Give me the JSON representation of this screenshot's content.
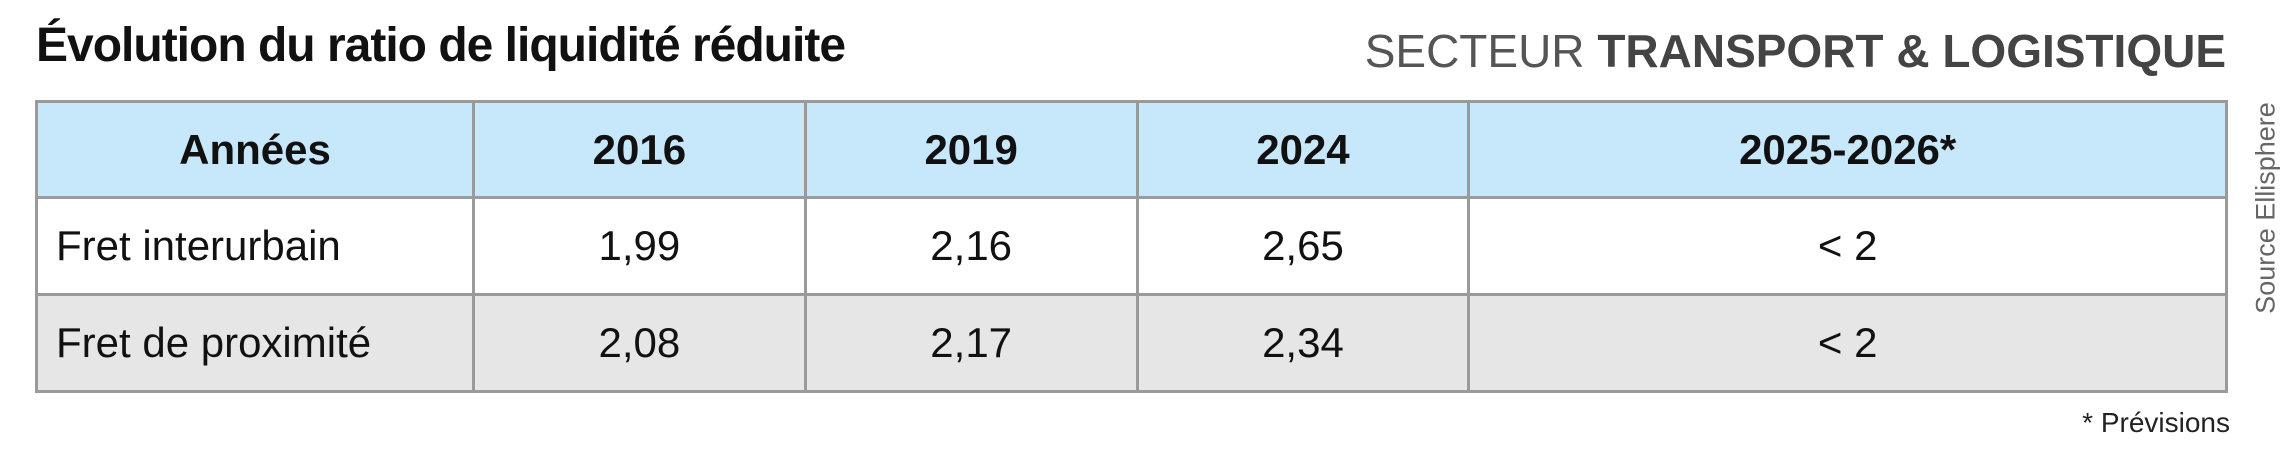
{
  "title": "Évolution du ratio de liquidité réduite",
  "subtitle": {
    "prefix": "SECTEUR",
    "emphasis": "TRANSPORT & LOGISTIQUE"
  },
  "table": {
    "header": [
      "Années",
      "2016",
      "2019",
      "2024",
      "2025-2026*"
    ],
    "rows": [
      [
        "Fret interurbain",
        "1,99",
        "2,16",
        "2,65",
        "< 2"
      ],
      [
        "Fret de proximité",
        "2,08",
        "2,17",
        "2,34",
        "< 2"
      ]
    ]
  },
  "source": "Source Ellisphere",
  "footnote": "* Prévisions"
}
